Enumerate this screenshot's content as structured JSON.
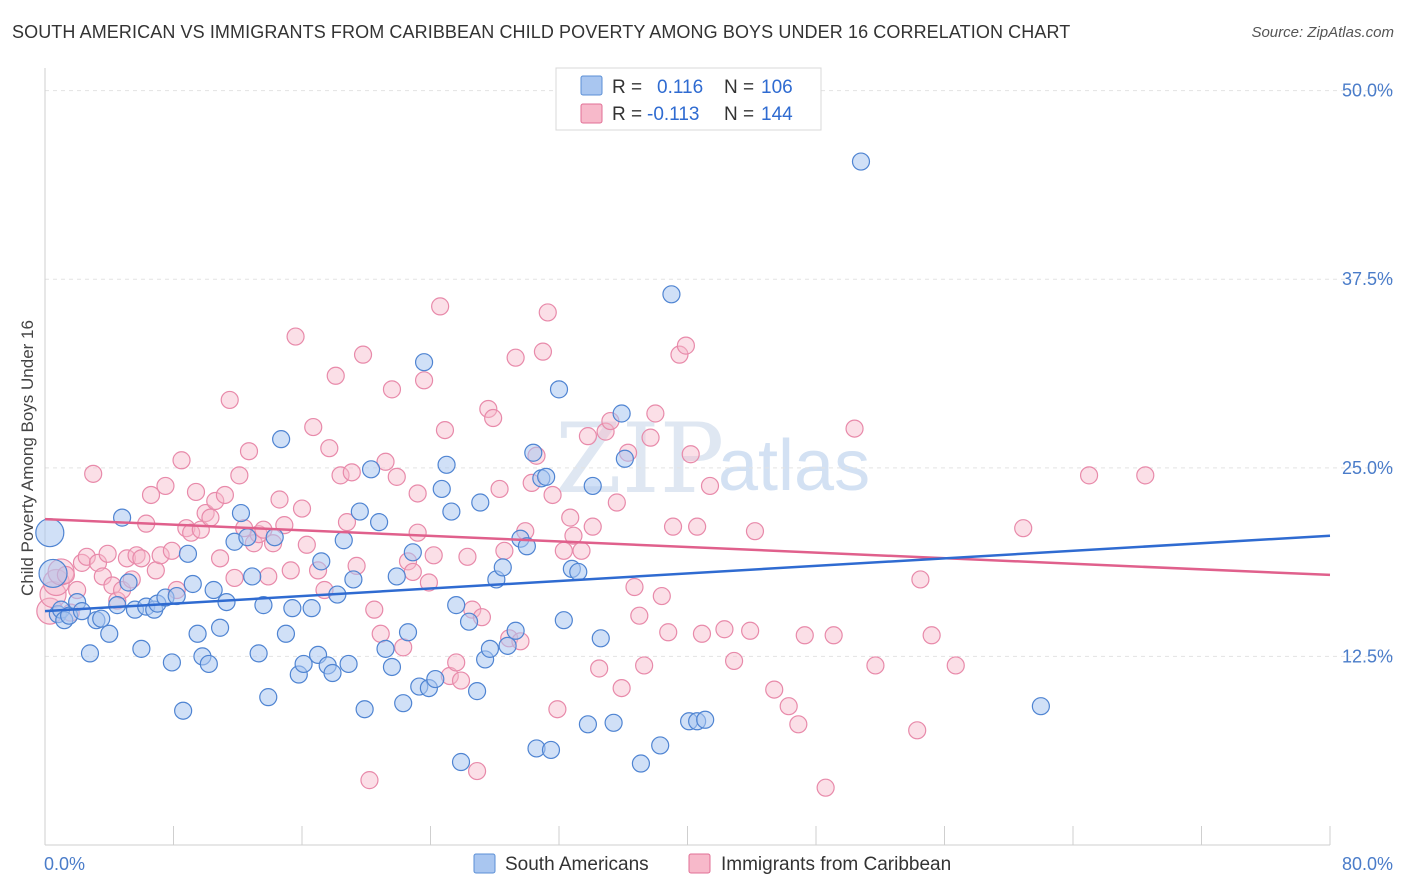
{
  "title": "SOUTH AMERICAN VS IMMIGRANTS FROM CARIBBEAN CHILD POVERTY AMONG BOYS UNDER 16 CORRELATION CHART",
  "source": "Source: ZipAtlas.com",
  "watermark": {
    "zip": "ZIP",
    "atlas": "atlas"
  },
  "legend_top": {
    "rows": [
      {
        "r_label": "R =",
        "r_value": "0.116",
        "n_label": "N =",
        "n_value": "106",
        "color": "#a9c6f0",
        "stroke": "#5b8fd6"
      },
      {
        "r_label": "R =",
        "r_value": "-0.113",
        "n_label": "N =",
        "n_value": "144",
        "color": "#f7b9ca",
        "stroke": "#e26f95"
      }
    ]
  },
  "legend_bottom": {
    "items": [
      {
        "label": "South Americans",
        "color": "#a9c6f0",
        "stroke": "#5b8fd6"
      },
      {
        "label": "Immigrants from Caribbean",
        "color": "#f7b9ca",
        "stroke": "#e26f95"
      }
    ]
  },
  "chart_data": {
    "type": "scatter",
    "title": "SOUTH AMERICAN VS IMMIGRANTS FROM CARIBBEAN CHILD POVERTY AMONG BOYS UNDER 16 CORRELATION CHART",
    "xlabel": "",
    "ylabel": "Child Poverty Among Boys Under 16",
    "xlim": [
      0,
      80
    ],
    "ylim": [
      0,
      51.5
    ],
    "x_tick_labels": [
      "0.0%",
      "80.0%"
    ],
    "y_ticks": [
      12.5,
      25.0,
      37.5,
      50.0
    ],
    "y_tick_labels": [
      "12.5%",
      "25.0%",
      "37.5%",
      "50.0%"
    ],
    "grid": true,
    "legend_placement": "top-center and bottom",
    "series": [
      {
        "name": "South Americans",
        "color": "#5b8fd6",
        "trend": {
          "x": [
            0,
            80
          ],
          "y": [
            15.5,
            20.5
          ]
        },
        "points": [
          [
            0.3,
            20.7
          ],
          [
            0.5,
            18.0
          ],
          [
            0.8,
            15.3
          ],
          [
            1.0,
            15.6
          ],
          [
            1.2,
            14.9
          ],
          [
            1.5,
            15.2
          ],
          [
            2.0,
            16.1
          ],
          [
            2.3,
            15.5
          ],
          [
            2.8,
            12.7
          ],
          [
            3.2,
            14.9
          ],
          [
            3.5,
            15.0
          ],
          [
            4.0,
            14.0
          ],
          [
            4.5,
            15.9
          ],
          [
            4.8,
            21.7
          ],
          [
            5.2,
            17.4
          ],
          [
            5.6,
            15.6
          ],
          [
            6.0,
            13.0
          ],
          [
            6.3,
            15.8
          ],
          [
            6.8,
            15.6
          ],
          [
            7.0,
            16.0
          ],
          [
            7.5,
            16.4
          ],
          [
            7.9,
            12.1
          ],
          [
            8.2,
            16.5
          ],
          [
            8.6,
            8.9
          ],
          [
            8.9,
            19.3
          ],
          [
            9.2,
            17.3
          ],
          [
            9.5,
            14.0
          ],
          [
            9.8,
            12.5
          ],
          [
            10.2,
            12.0
          ],
          [
            10.5,
            16.9
          ],
          [
            10.9,
            14.4
          ],
          [
            11.3,
            16.1
          ],
          [
            11.8,
            20.1
          ],
          [
            12.2,
            22.0
          ],
          [
            12.6,
            20.4
          ],
          [
            12.9,
            17.8
          ],
          [
            13.3,
            12.7
          ],
          [
            13.6,
            15.9
          ],
          [
            13.9,
            9.8
          ],
          [
            14.3,
            20.4
          ],
          [
            14.7,
            26.9
          ],
          [
            15.0,
            14.0
          ],
          [
            15.4,
            15.7
          ],
          [
            15.8,
            11.3
          ],
          [
            16.1,
            12.0
          ],
          [
            16.6,
            15.7
          ],
          [
            17.0,
            12.6
          ],
          [
            17.2,
            18.8
          ],
          [
            17.6,
            11.9
          ],
          [
            17.9,
            11.4
          ],
          [
            18.2,
            16.6
          ],
          [
            18.6,
            20.2
          ],
          [
            18.9,
            12.0
          ],
          [
            19.2,
            17.6
          ],
          [
            19.6,
            22.1
          ],
          [
            19.9,
            9.0
          ],
          [
            20.3,
            24.9
          ],
          [
            20.8,
            21.4
          ],
          [
            21.2,
            13.0
          ],
          [
            21.6,
            11.8
          ],
          [
            21.9,
            17.8
          ],
          [
            22.3,
            9.4
          ],
          [
            22.6,
            14.1
          ],
          [
            22.9,
            19.4
          ],
          [
            23.3,
            10.5
          ],
          [
            23.6,
            32.0
          ],
          [
            23.9,
            10.4
          ],
          [
            24.3,
            11.0
          ],
          [
            24.7,
            23.6
          ],
          [
            25.0,
            25.2
          ],
          [
            25.3,
            22.1
          ],
          [
            25.6,
            15.9
          ],
          [
            25.9,
            5.5
          ],
          [
            26.4,
            14.8
          ],
          [
            26.9,
            10.2
          ],
          [
            27.1,
            22.7
          ],
          [
            27.4,
            12.3
          ],
          [
            27.7,
            13.0
          ],
          [
            28.1,
            17.6
          ],
          [
            28.5,
            18.4
          ],
          [
            28.8,
            13.2
          ],
          [
            29.3,
            14.2
          ],
          [
            29.6,
            20.3
          ],
          [
            30.0,
            19.8
          ],
          [
            30.4,
            26.0
          ],
          [
            30.6,
            6.4
          ],
          [
            30.9,
            24.3
          ],
          [
            31.2,
            24.4
          ],
          [
            31.5,
            6.3
          ],
          [
            32.0,
            30.2
          ],
          [
            32.3,
            14.9
          ],
          [
            32.8,
            18.3
          ],
          [
            33.2,
            18.1
          ],
          [
            33.8,
            8.0
          ],
          [
            34.1,
            23.8
          ],
          [
            34.6,
            13.7
          ],
          [
            35.4,
            8.1
          ],
          [
            35.9,
            28.6
          ],
          [
            36.1,
            25.6
          ],
          [
            37.1,
            5.4
          ],
          [
            38.3,
            6.6
          ],
          [
            39.0,
            36.5
          ],
          [
            40.1,
            8.2
          ],
          [
            40.6,
            8.2
          ],
          [
            41.1,
            8.3
          ],
          [
            50.8,
            45.3
          ],
          [
            62.0,
            9.2
          ]
        ]
      },
      {
        "name": "Immigrants from Caribbean",
        "color": "#e26f95",
        "trend": {
          "x": [
            0,
            80
          ],
          "y": [
            21.6,
            17.9
          ]
        },
        "points": [
          [
            0.3,
            15.5
          ],
          [
            0.5,
            16.6
          ],
          [
            0.7,
            17.4
          ],
          [
            1.0,
            18.1
          ],
          [
            1.3,
            17.9
          ],
          [
            1.6,
            15.4
          ],
          [
            2.0,
            16.9
          ],
          [
            2.3,
            18.7
          ],
          [
            2.6,
            19.1
          ],
          [
            3.0,
            24.6
          ],
          [
            3.3,
            18.7
          ],
          [
            3.6,
            17.8
          ],
          [
            3.9,
            19.3
          ],
          [
            4.2,
            17.2
          ],
          [
            4.5,
            16.2
          ],
          [
            4.8,
            16.9
          ],
          [
            5.1,
            19.0
          ],
          [
            5.4,
            17.6
          ],
          [
            5.7,
            19.2
          ],
          [
            6.0,
            19.0
          ],
          [
            6.3,
            21.3
          ],
          [
            6.6,
            23.2
          ],
          [
            6.9,
            18.2
          ],
          [
            7.2,
            19.2
          ],
          [
            7.5,
            23.8
          ],
          [
            7.9,
            19.5
          ],
          [
            8.2,
            16.9
          ],
          [
            8.5,
            25.5
          ],
          [
            8.8,
            21.0
          ],
          [
            9.1,
            20.7
          ],
          [
            9.4,
            23.4
          ],
          [
            9.7,
            20.9
          ],
          [
            10.0,
            22.0
          ],
          [
            10.3,
            21.7
          ],
          [
            10.6,
            22.8
          ],
          [
            10.9,
            19.0
          ],
          [
            11.2,
            23.2
          ],
          [
            11.5,
            29.5
          ],
          [
            11.8,
            17.7
          ],
          [
            12.1,
            24.5
          ],
          [
            12.4,
            21.0
          ],
          [
            12.7,
            26.1
          ],
          [
            13.0,
            20.0
          ],
          [
            13.3,
            20.6
          ],
          [
            13.6,
            20.9
          ],
          [
            13.9,
            17.8
          ],
          [
            14.2,
            20.0
          ],
          [
            14.6,
            22.9
          ],
          [
            14.9,
            21.2
          ],
          [
            15.3,
            18.2
          ],
          [
            15.6,
            33.7
          ],
          [
            16.0,
            22.3
          ],
          [
            16.3,
            19.9
          ],
          [
            16.7,
            27.7
          ],
          [
            17.0,
            18.2
          ],
          [
            17.4,
            16.9
          ],
          [
            17.7,
            26.3
          ],
          [
            18.1,
            31.1
          ],
          [
            18.4,
            24.5
          ],
          [
            18.8,
            21.4
          ],
          [
            19.1,
            24.7
          ],
          [
            19.4,
            18.5
          ],
          [
            19.8,
            32.5
          ],
          [
            20.2,
            4.3
          ],
          [
            20.5,
            15.6
          ],
          [
            20.9,
            14.0
          ],
          [
            21.2,
            25.4
          ],
          [
            21.6,
            30.2
          ],
          [
            21.9,
            24.4
          ],
          [
            22.3,
            13.1
          ],
          [
            22.6,
            18.8
          ],
          [
            22.9,
            18.1
          ],
          [
            23.2,
            20.7
          ],
          [
            23.6,
            30.8
          ],
          [
            23.9,
            17.4
          ],
          [
            24.2,
            19.2
          ],
          [
            24.6,
            35.7
          ],
          [
            24.9,
            27.5
          ],
          [
            25.2,
            11.2
          ],
          [
            25.6,
            12.1
          ],
          [
            25.9,
            10.9
          ],
          [
            26.3,
            19.1
          ],
          [
            26.6,
            15.6
          ],
          [
            26.9,
            4.9
          ],
          [
            27.2,
            15.1
          ],
          [
            27.6,
            28.9
          ],
          [
            27.9,
            28.3
          ],
          [
            28.3,
            23.6
          ],
          [
            28.6,
            19.5
          ],
          [
            28.9,
            13.7
          ],
          [
            29.3,
            32.3
          ],
          [
            29.6,
            13.5
          ],
          [
            29.9,
            20.8
          ],
          [
            30.3,
            24.0
          ],
          [
            30.6,
            25.8
          ],
          [
            31.0,
            32.7
          ],
          [
            31.3,
            35.3
          ],
          [
            31.6,
            23.2
          ],
          [
            31.9,
            9.0
          ],
          [
            32.3,
            19.5
          ],
          [
            32.7,
            21.7
          ],
          [
            32.9,
            20.5
          ],
          [
            33.4,
            19.5
          ],
          [
            33.8,
            27.1
          ],
          [
            34.1,
            21.1
          ],
          [
            34.5,
            11.7
          ],
          [
            34.9,
            27.4
          ],
          [
            35.2,
            28.1
          ],
          [
            35.6,
            22.7
          ],
          [
            35.9,
            10.4
          ],
          [
            36.3,
            26.0
          ],
          [
            36.7,
            17.1
          ],
          [
            37.0,
            15.2
          ],
          [
            37.3,
            11.9
          ],
          [
            37.7,
            27.0
          ],
          [
            38.0,
            28.6
          ],
          [
            38.4,
            16.5
          ],
          [
            38.8,
            14.1
          ],
          [
            39.1,
            21.1
          ],
          [
            39.5,
            32.5
          ],
          [
            39.9,
            33.1
          ],
          [
            40.2,
            25.9
          ],
          [
            40.6,
            21.1
          ],
          [
            40.9,
            14.0
          ],
          [
            41.4,
            23.8
          ],
          [
            42.3,
            14.3
          ],
          [
            42.9,
            12.2
          ],
          [
            44.2,
            20.8
          ],
          [
            45.4,
            10.3
          ],
          [
            46.3,
            9.2
          ],
          [
            46.9,
            8.0
          ],
          [
            47.3,
            13.9
          ],
          [
            49.1,
            13.9
          ],
          [
            50.4,
            27.6
          ],
          [
            51.7,
            11.9
          ],
          [
            54.3,
            7.6
          ],
          [
            54.5,
            17.6
          ],
          [
            55.2,
            13.9
          ],
          [
            56.7,
            11.9
          ],
          [
            60.9,
            21.0
          ],
          [
            65.0,
            24.5
          ],
          [
            68.5,
            24.5
          ],
          [
            23.2,
            23.3
          ],
          [
            43.9,
            14.2
          ],
          [
            48.6,
            3.8
          ]
        ]
      }
    ]
  }
}
